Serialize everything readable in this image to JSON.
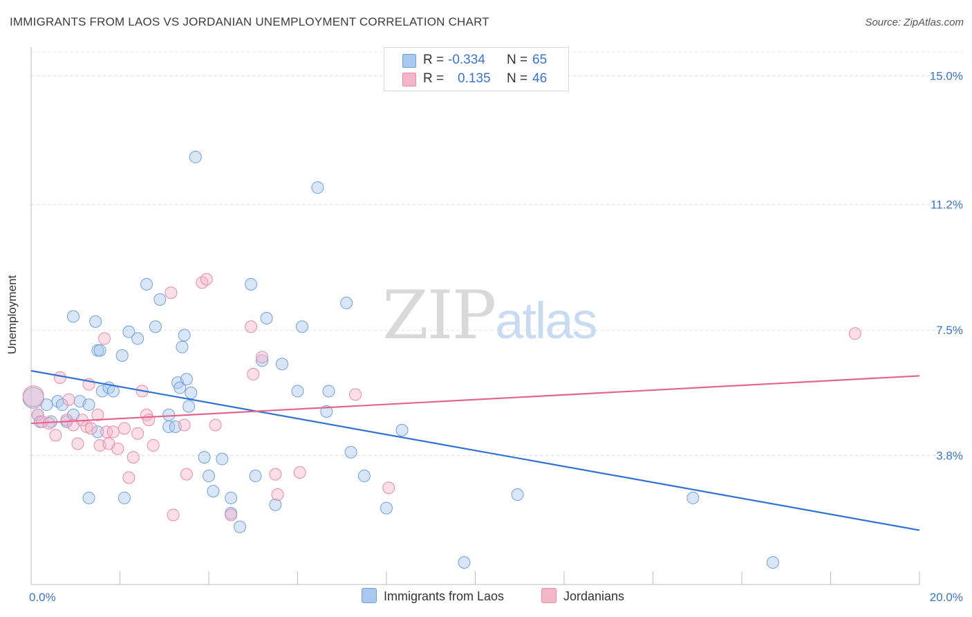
{
  "header": {
    "title": "IMMIGRANTS FROM LAOS VS JORDANIAN UNEMPLOYMENT CORRELATION CHART",
    "source": "Source: ZipAtlas.com"
  },
  "watermark": {
    "zip": "ZIP",
    "atlas": "atlas"
  },
  "stats_legend": {
    "rows": [
      {
        "r_label": "R =",
        "r_value": "-0.334",
        "n_label": "N =",
        "n_value": "65",
        "color": "#a9c8ef"
      },
      {
        "r_label": "R =",
        "r_value": "0.135",
        "n_label": "N =",
        "n_value": "46",
        "color": "#f6b6c9"
      }
    ]
  },
  "bottom_legend": {
    "items": [
      {
        "label": "Immigrants from Laos",
        "color": "#a9c8ef"
      },
      {
        "label": "Jordanians",
        "color": "#f6b6c9"
      }
    ]
  },
  "chart_data": {
    "type": "scatter",
    "title": "IMMIGRANTS FROM LAOS VS JORDANIAN UNEMPLOYMENT CORRELATION CHART",
    "xlabel": "",
    "ylabel": "Unemployment",
    "xlim": [
      0,
      20
    ],
    "ylim": [
      0,
      15.7
    ],
    "x_tick_labels": [
      "0.0%",
      "20.0%"
    ],
    "y_ticks": [
      3.8,
      7.5,
      11.2,
      15.0
    ],
    "y_tick_labels": [
      "3.8%",
      "7.5%",
      "11.2%",
      "15.0%"
    ],
    "grid": true,
    "legend_position": "top-center",
    "series": [
      {
        "name": "Immigrants from Laos",
        "color": "#a9c8ef",
        "edge_color": "#6f9fdb",
        "trend_color": "#2f72d2",
        "trend": {
          "x": [
            0,
            20
          ],
          "y": [
            6.3,
            1.6
          ]
        },
        "points": [
          [
            0.05,
            5.5
          ],
          [
            0.15,
            5.0
          ],
          [
            0.2,
            4.8
          ],
          [
            0.35,
            5.3
          ],
          [
            0.45,
            4.8
          ],
          [
            0.6,
            5.4
          ],
          [
            0.7,
            5.3
          ],
          [
            0.8,
            4.8
          ],
          [
            0.95,
            5.0
          ],
          [
            1.1,
            5.4
          ],
          [
            1.3,
            5.3
          ],
          [
            0.95,
            7.9
          ],
          [
            1.45,
            7.75
          ],
          [
            1.5,
            6.9
          ],
          [
            1.55,
            6.9
          ],
          [
            1.6,
            5.7
          ],
          [
            1.75,
            5.8
          ],
          [
            1.85,
            5.7
          ],
          [
            1.5,
            4.5
          ],
          [
            2.05,
            6.75
          ],
          [
            2.2,
            7.45
          ],
          [
            2.4,
            7.25
          ],
          [
            2.6,
            8.85
          ],
          [
            2.8,
            7.6
          ],
          [
            2.9,
            8.4
          ],
          [
            3.1,
            5.0
          ],
          [
            3.1,
            4.65
          ],
          [
            3.25,
            4.65
          ],
          [
            3.3,
            5.95
          ],
          [
            3.35,
            5.8
          ],
          [
            3.4,
            7.0
          ],
          [
            3.45,
            7.35
          ],
          [
            3.5,
            6.05
          ],
          [
            3.55,
            5.25
          ],
          [
            3.7,
            12.6
          ],
          [
            3.6,
            5.65
          ],
          [
            3.9,
            3.75
          ],
          [
            4.0,
            3.2
          ],
          [
            4.1,
            2.75
          ],
          [
            4.3,
            3.7
          ],
          [
            4.5,
            2.1
          ],
          [
            4.5,
            2.55
          ],
          [
            4.7,
            1.7
          ],
          [
            4.95,
            8.85
          ],
          [
            5.05,
            3.2
          ],
          [
            5.2,
            6.6
          ],
          [
            5.3,
            7.85
          ],
          [
            5.5,
            2.35
          ],
          [
            5.65,
            6.5
          ],
          [
            6.0,
            5.7
          ],
          [
            6.1,
            7.6
          ],
          [
            6.45,
            11.7
          ],
          [
            6.65,
            5.1
          ],
          [
            6.7,
            5.7
          ],
          [
            7.1,
            8.3
          ],
          [
            7.2,
            3.9
          ],
          [
            7.5,
            3.2
          ],
          [
            8.0,
            2.25
          ],
          [
            8.35,
            4.55
          ],
          [
            9.75,
            0.65
          ],
          [
            10.95,
            2.65
          ],
          [
            14.9,
            2.55
          ],
          [
            16.7,
            0.65
          ],
          [
            1.3,
            2.55
          ],
          [
            2.1,
            2.55
          ]
        ]
      },
      {
        "name": "Jordanians",
        "color": "#f6b6c9",
        "edge_color": "#e88aa8",
        "trend_color": "#e3658f",
        "trend": {
          "x": [
            0,
            20
          ],
          "y": [
            4.75,
            6.15
          ]
        },
        "points": [
          [
            0.05,
            5.55
          ],
          [
            0.15,
            5.0
          ],
          [
            0.25,
            4.8
          ],
          [
            0.4,
            4.75
          ],
          [
            0.55,
            4.4
          ],
          [
            0.65,
            6.1
          ],
          [
            0.8,
            4.85
          ],
          [
            0.85,
            5.45
          ],
          [
            0.95,
            4.7
          ],
          [
            1.05,
            4.15
          ],
          [
            1.15,
            4.85
          ],
          [
            1.25,
            4.65
          ],
          [
            1.3,
            5.9
          ],
          [
            1.35,
            4.6
          ],
          [
            1.5,
            5.0
          ],
          [
            1.55,
            4.1
          ],
          [
            1.65,
            7.25
          ],
          [
            1.7,
            4.5
          ],
          [
            1.75,
            4.15
          ],
          [
            1.85,
            4.5
          ],
          [
            1.95,
            4.0
          ],
          [
            2.1,
            4.6
          ],
          [
            2.2,
            3.15
          ],
          [
            2.3,
            3.75
          ],
          [
            2.4,
            4.45
          ],
          [
            2.5,
            5.7
          ],
          [
            2.6,
            5.0
          ],
          [
            2.65,
            4.85
          ],
          [
            2.75,
            4.1
          ],
          [
            3.15,
            8.6
          ],
          [
            3.2,
            2.05
          ],
          [
            3.45,
            4.7
          ],
          [
            3.5,
            3.25
          ],
          [
            3.85,
            8.9
          ],
          [
            3.95,
            9.0
          ],
          [
            4.15,
            4.7
          ],
          [
            4.5,
            2.05
          ],
          [
            4.95,
            7.6
          ],
          [
            5.0,
            6.2
          ],
          [
            5.2,
            6.7
          ],
          [
            5.5,
            3.25
          ],
          [
            5.55,
            2.65
          ],
          [
            6.05,
            3.3
          ],
          [
            7.3,
            5.6
          ],
          [
            8.05,
            2.85
          ],
          [
            18.55,
            7.4
          ]
        ]
      }
    ]
  }
}
